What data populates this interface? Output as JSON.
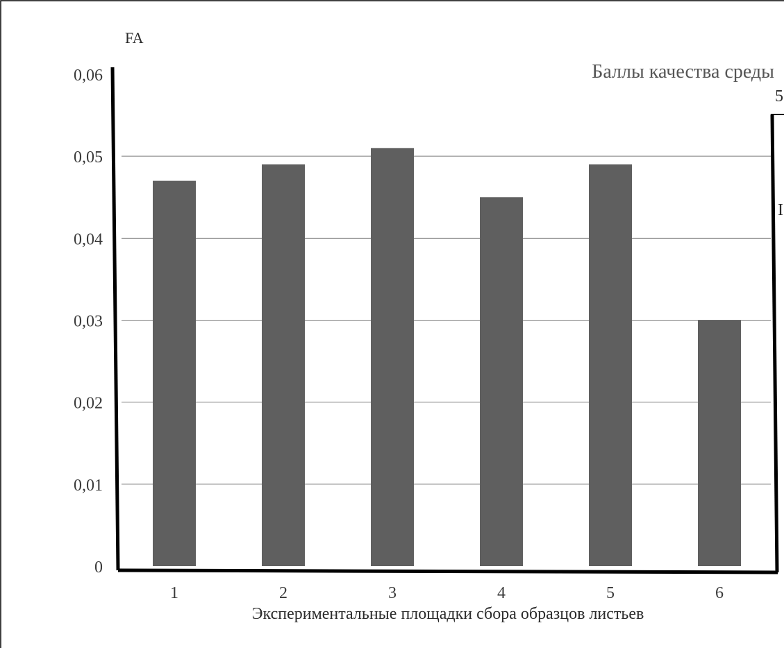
{
  "chart_data": {
    "type": "bar",
    "title": "",
    "ylabel": "FA",
    "xlabel": "Экспериментальные площадки сбора образцов листьев",
    "y2label": "Баллы качества среды",
    "y2_visible_tick": "5",
    "y2_partial_label": "I",
    "categories": [
      "1",
      "2",
      "3",
      "4",
      "5",
      "6"
    ],
    "values": [
      0.047,
      0.049,
      0.051,
      0.045,
      0.049,
      0.03
    ],
    "ylim": [
      0,
      0.06
    ],
    "yticks": [
      "0",
      "0,01",
      "0,02",
      "0,03",
      "0,04",
      "0,05",
      "0,06"
    ],
    "grid": true,
    "colors": {
      "bar": "#5f5f5f",
      "grid": "#7a7a7a",
      "axis": "#000000"
    }
  }
}
